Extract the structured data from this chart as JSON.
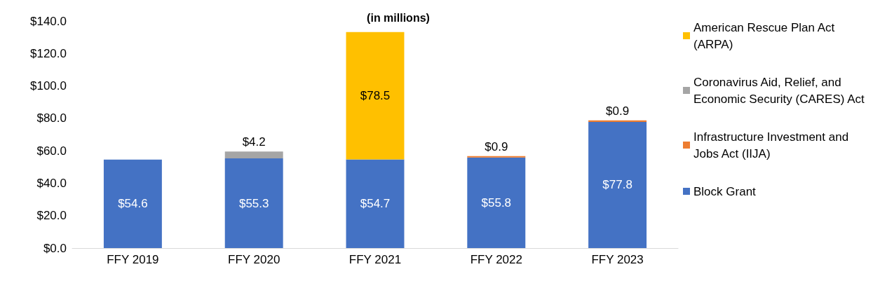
{
  "chart_data": {
    "type": "bar",
    "subtitle": "(in millions)",
    "stacked": true,
    "categories": [
      "FFY 2019",
      "FFY 2020",
      "FFY 2021",
      "FFY 2022",
      "FFY 2023"
    ],
    "series": [
      {
        "name": "Block Grant",
        "color": "#4472c4",
        "values": [
          54.6,
          55.3,
          54.7,
          55.8,
          77.8
        ],
        "value_labels": [
          "$54.6",
          "$55.3",
          "$54.7",
          "$55.8",
          "$77.8"
        ]
      },
      {
        "name": "Infrastructure Investment and Jobs Act (IIJA)",
        "color": "#ed7d31",
        "values": [
          null,
          null,
          null,
          0.9,
          0.9
        ],
        "value_labels": [
          null,
          null,
          null,
          "$0.9",
          "$0.9"
        ]
      },
      {
        "name": "Coronavirus Aid, Relief, and Economic Security (CARES) Act",
        "color": "#a5a5a5",
        "values": [
          null,
          4.2,
          null,
          null,
          null
        ],
        "value_labels": [
          null,
          "$4.2",
          null,
          null,
          null
        ]
      },
      {
        "name": "American Rescue Plan Act (ARPA)",
        "color": "#ffc000",
        "values": [
          null,
          null,
          78.5,
          null,
          null
        ],
        "value_labels": [
          null,
          null,
          "$78.5",
          null,
          null
        ]
      }
    ],
    "ylim": [
      0,
      140
    ],
    "yticks": [
      {
        "value": 0,
        "label": "$0.0"
      },
      {
        "value": 20,
        "label": "$20.0"
      },
      {
        "value": 40,
        "label": "$40.0"
      },
      {
        "value": 60,
        "label": "$60.0"
      },
      {
        "value": 80,
        "label": "$80.0"
      },
      {
        "value": 100,
        "label": "$100.0"
      },
      {
        "value": 120,
        "label": "$120.0"
      },
      {
        "value": 140,
        "label": "$140.0"
      }
    ],
    "grid": false,
    "legend": "right"
  }
}
